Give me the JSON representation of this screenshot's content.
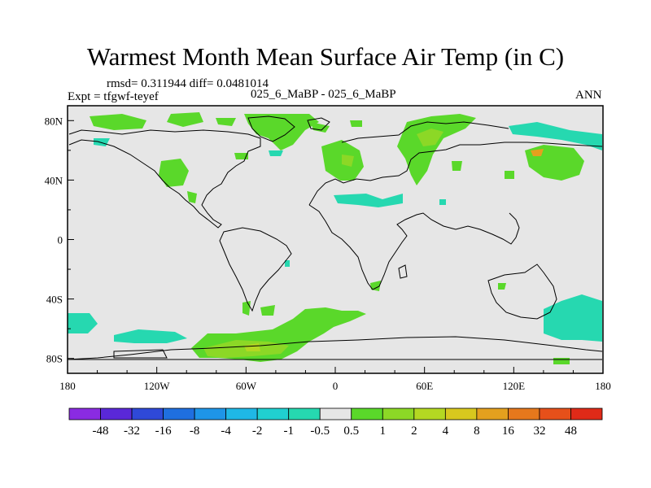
{
  "title": "Warmest Month Mean Surface Air Temp (in C)",
  "stats_text": "rmsd= 0.311944 diff= 0.0481014",
  "expt_label": "Expt = tfgwf-teyef",
  "center_label": "025_6_MaBP - 025_6_MaBP",
  "season_label": "ANN",
  "map": {
    "projection": "cylindrical-equidistant",
    "lon_range": [
      -180,
      180
    ],
    "lat_range": [
      -90,
      90
    ],
    "lon_ticks": [
      "180",
      "120W",
      "60W",
      "0",
      "60E",
      "120E",
      "180"
    ],
    "lat_ticks": [
      "80N",
      "40N",
      "0",
      "40S",
      "80S"
    ],
    "background_color": "#e6e6e6"
  },
  "colorbar": {
    "labels": [
      "-48",
      "-32",
      "-16",
      "-8",
      "-4",
      "-2",
      "-1",
      "-0.5",
      "0.5",
      "1",
      "2",
      "4",
      "8",
      "16",
      "32",
      "48"
    ],
    "colors": [
      "#8a2be2",
      "#5a28d8",
      "#2f49d8",
      "#1f6fe0",
      "#1e95e8",
      "#1fb8e6",
      "#20d0d0",
      "#26d8b0",
      "#e6e6e6",
      "#5ad82a",
      "#8cd826",
      "#b4d822",
      "#d8c81e",
      "#e4a01e",
      "#e6781c",
      "#e6501a",
      "#e02a18"
    ]
  }
}
